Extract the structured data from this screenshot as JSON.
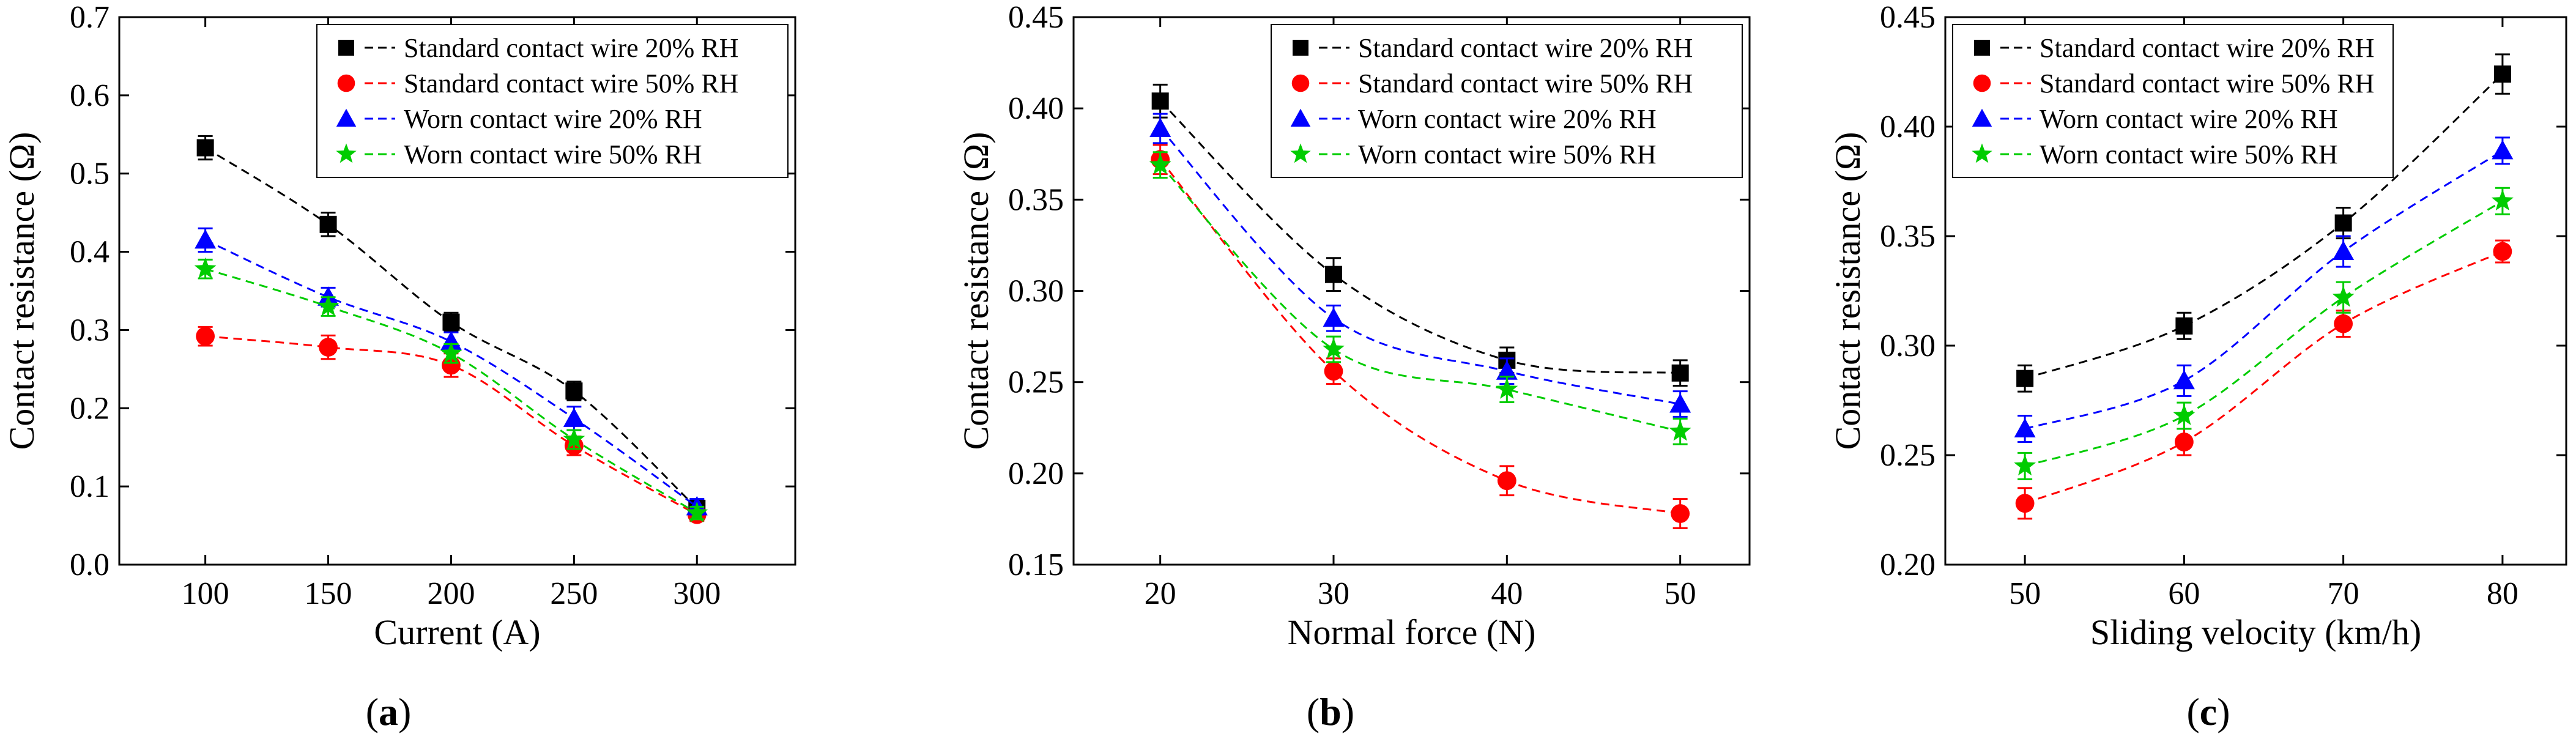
{
  "chart_data": [
    {
      "type": "line",
      "panel_label": "a",
      "xlabel": "Current (A)",
      "ylabel": "Contact resistance (Ω)",
      "x": [
        100,
        150,
        200,
        250,
        300
      ],
      "xlim": [
        65,
        340
      ],
      "ylim": [
        0,
        0.7
      ],
      "xticks": [
        100,
        150,
        200,
        250,
        300
      ],
      "xtick_labels": [
        "100",
        "150",
        "200",
        "250",
        "300"
      ],
      "yticks": [
        0,
        0.1,
        0.2,
        0.3,
        0.4,
        0.5,
        0.6,
        0.7
      ],
      "ytick_labels": [
        "0.0",
        "0.1",
        "0.2",
        "0.3",
        "0.4",
        "0.5",
        "0.6",
        "0.7"
      ],
      "legend_position": "top-right",
      "series": [
        {
          "name": "Standard contact wire 20% RH",
          "color": "#000000",
          "marker": "square",
          "values": [
            0.533,
            0.435,
            0.31,
            0.222,
            0.072
          ],
          "errors": [
            0.015,
            0.015,
            0.012,
            0.012,
            0.01
          ]
        },
        {
          "name": "Standard contact wire 50% RH",
          "color": "#ff0000",
          "marker": "circle",
          "values": [
            0.292,
            0.278,
            0.255,
            0.152,
            0.064
          ],
          "errors": [
            0.012,
            0.015,
            0.015,
            0.012,
            0.008
          ]
        },
        {
          "name": "Worn contact wire 20% RH",
          "color": "#0000ff",
          "marker": "triangle",
          "values": [
            0.415,
            0.342,
            0.285,
            0.187,
            0.074
          ],
          "errors": [
            0.015,
            0.012,
            0.012,
            0.015,
            0.01
          ]
        },
        {
          "name": "Worn contact wire 50% RH",
          "color": "#00cc00",
          "marker": "star",
          "values": [
            0.378,
            0.33,
            0.27,
            0.16,
            0.066
          ],
          "errors": [
            0.012,
            0.012,
            0.012,
            0.012,
            0.008
          ]
        }
      ]
    },
    {
      "type": "line",
      "panel_label": "b",
      "xlabel": "Normal force (N)",
      "ylabel": "Contact resistance (Ω)",
      "x": [
        20,
        30,
        40,
        50
      ],
      "xlim": [
        15,
        54
      ],
      "ylim": [
        0.15,
        0.45
      ],
      "xticks": [
        20,
        30,
        40,
        50
      ],
      "xtick_labels": [
        "20",
        "30",
        "40",
        "50"
      ],
      "yticks": [
        0.15,
        0.2,
        0.25,
        0.3,
        0.35,
        0.4,
        0.45
      ],
      "ytick_labels": [
        "0.15",
        "0.20",
        "0.25",
        "0.30",
        "0.35",
        "0.40",
        "0.45"
      ],
      "legend_position": "top-right",
      "series": [
        {
          "name": "Standard contact wire 20% RH",
          "color": "#000000",
          "marker": "square",
          "values": [
            0.404,
            0.309,
            0.262,
            0.255
          ],
          "errors": [
            0.009,
            0.009,
            0.007,
            0.007
          ]
        },
        {
          "name": "Standard contact wire 50% RH",
          "color": "#ff0000",
          "marker": "circle",
          "values": [
            0.372,
            0.256,
            0.196,
            0.178
          ],
          "errors": [
            0.008,
            0.007,
            0.008,
            0.008
          ]
        },
        {
          "name": "Worn contact wire 20% RH",
          "color": "#0000ff",
          "marker": "triangle",
          "values": [
            0.389,
            0.285,
            0.256,
            0.238
          ],
          "errors": [
            0.008,
            0.007,
            0.007,
            0.007
          ]
        },
        {
          "name": "Worn contact wire 50% RH",
          "color": "#00cc00",
          "marker": "star",
          "values": [
            0.369,
            0.268,
            0.246,
            0.223
          ],
          "errors": [
            0.007,
            0.007,
            0.007,
            0.007
          ]
        }
      ]
    },
    {
      "type": "line",
      "panel_label": "c",
      "xlabel": "Sliding velocity (km/h)",
      "ylabel": "Contact resistance (Ω)",
      "x": [
        50,
        60,
        70,
        80
      ],
      "xlim": [
        45,
        84
      ],
      "ylim": [
        0.2,
        0.45
      ],
      "xticks": [
        50,
        60,
        70,
        80
      ],
      "xtick_labels": [
        "50",
        "60",
        "70",
        "80"
      ],
      "yticks": [
        0.2,
        0.25,
        0.3,
        0.35,
        0.4,
        0.45
      ],
      "ytick_labels": [
        "0.20",
        "0.25",
        "0.30",
        "0.35",
        "0.40",
        "0.45"
      ],
      "legend_position": "top-left",
      "series": [
        {
          "name": "Standard contact wire 20% RH",
          "color": "#000000",
          "marker": "square",
          "values": [
            0.285,
            0.309,
            0.356,
            0.424
          ],
          "errors": [
            0.006,
            0.006,
            0.007,
            0.009
          ]
        },
        {
          "name": "Standard contact wire 50% RH",
          "color": "#ff0000",
          "marker": "circle",
          "values": [
            0.228,
            0.256,
            0.31,
            0.343
          ],
          "errors": [
            0.007,
            0.006,
            0.006,
            0.005
          ]
        },
        {
          "name": "Worn contact wire 20% RH",
          "color": "#0000ff",
          "marker": "triangle",
          "values": [
            0.262,
            0.284,
            0.343,
            0.389
          ],
          "errors": [
            0.006,
            0.007,
            0.007,
            0.006
          ]
        },
        {
          "name": "Worn contact wire 50% RH",
          "color": "#00cc00",
          "marker": "star",
          "values": [
            0.245,
            0.268,
            0.322,
            0.366
          ],
          "errors": [
            0.006,
            0.006,
            0.007,
            0.006
          ]
        }
      ]
    }
  ]
}
